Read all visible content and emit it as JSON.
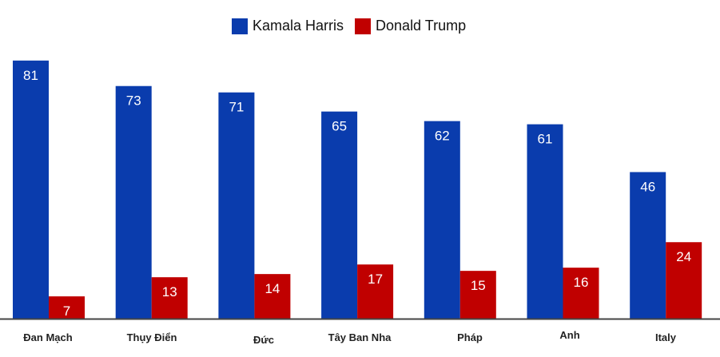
{
  "chart_data": {
    "type": "bar",
    "title": "",
    "xlabel": "",
    "ylabel": "",
    "ylim": [
      0,
      100
    ],
    "grid": false,
    "legend_position": "top-center",
    "categories": [
      "Đan Mạch",
      "Thụy Điển",
      "Đức",
      "Tây Ban Nha",
      "Pháp",
      "Anh",
      "Italy"
    ],
    "series": [
      {
        "name": "Kamala Harris",
        "color": "#0a3cad",
        "values": [
          81,
          73,
          71,
          65,
          62,
          61,
          46
        ]
      },
      {
        "name": "Donald Trump",
        "color": "#c00000",
        "values": [
          7,
          13,
          14,
          17,
          15,
          16,
          24
        ]
      }
    ]
  }
}
